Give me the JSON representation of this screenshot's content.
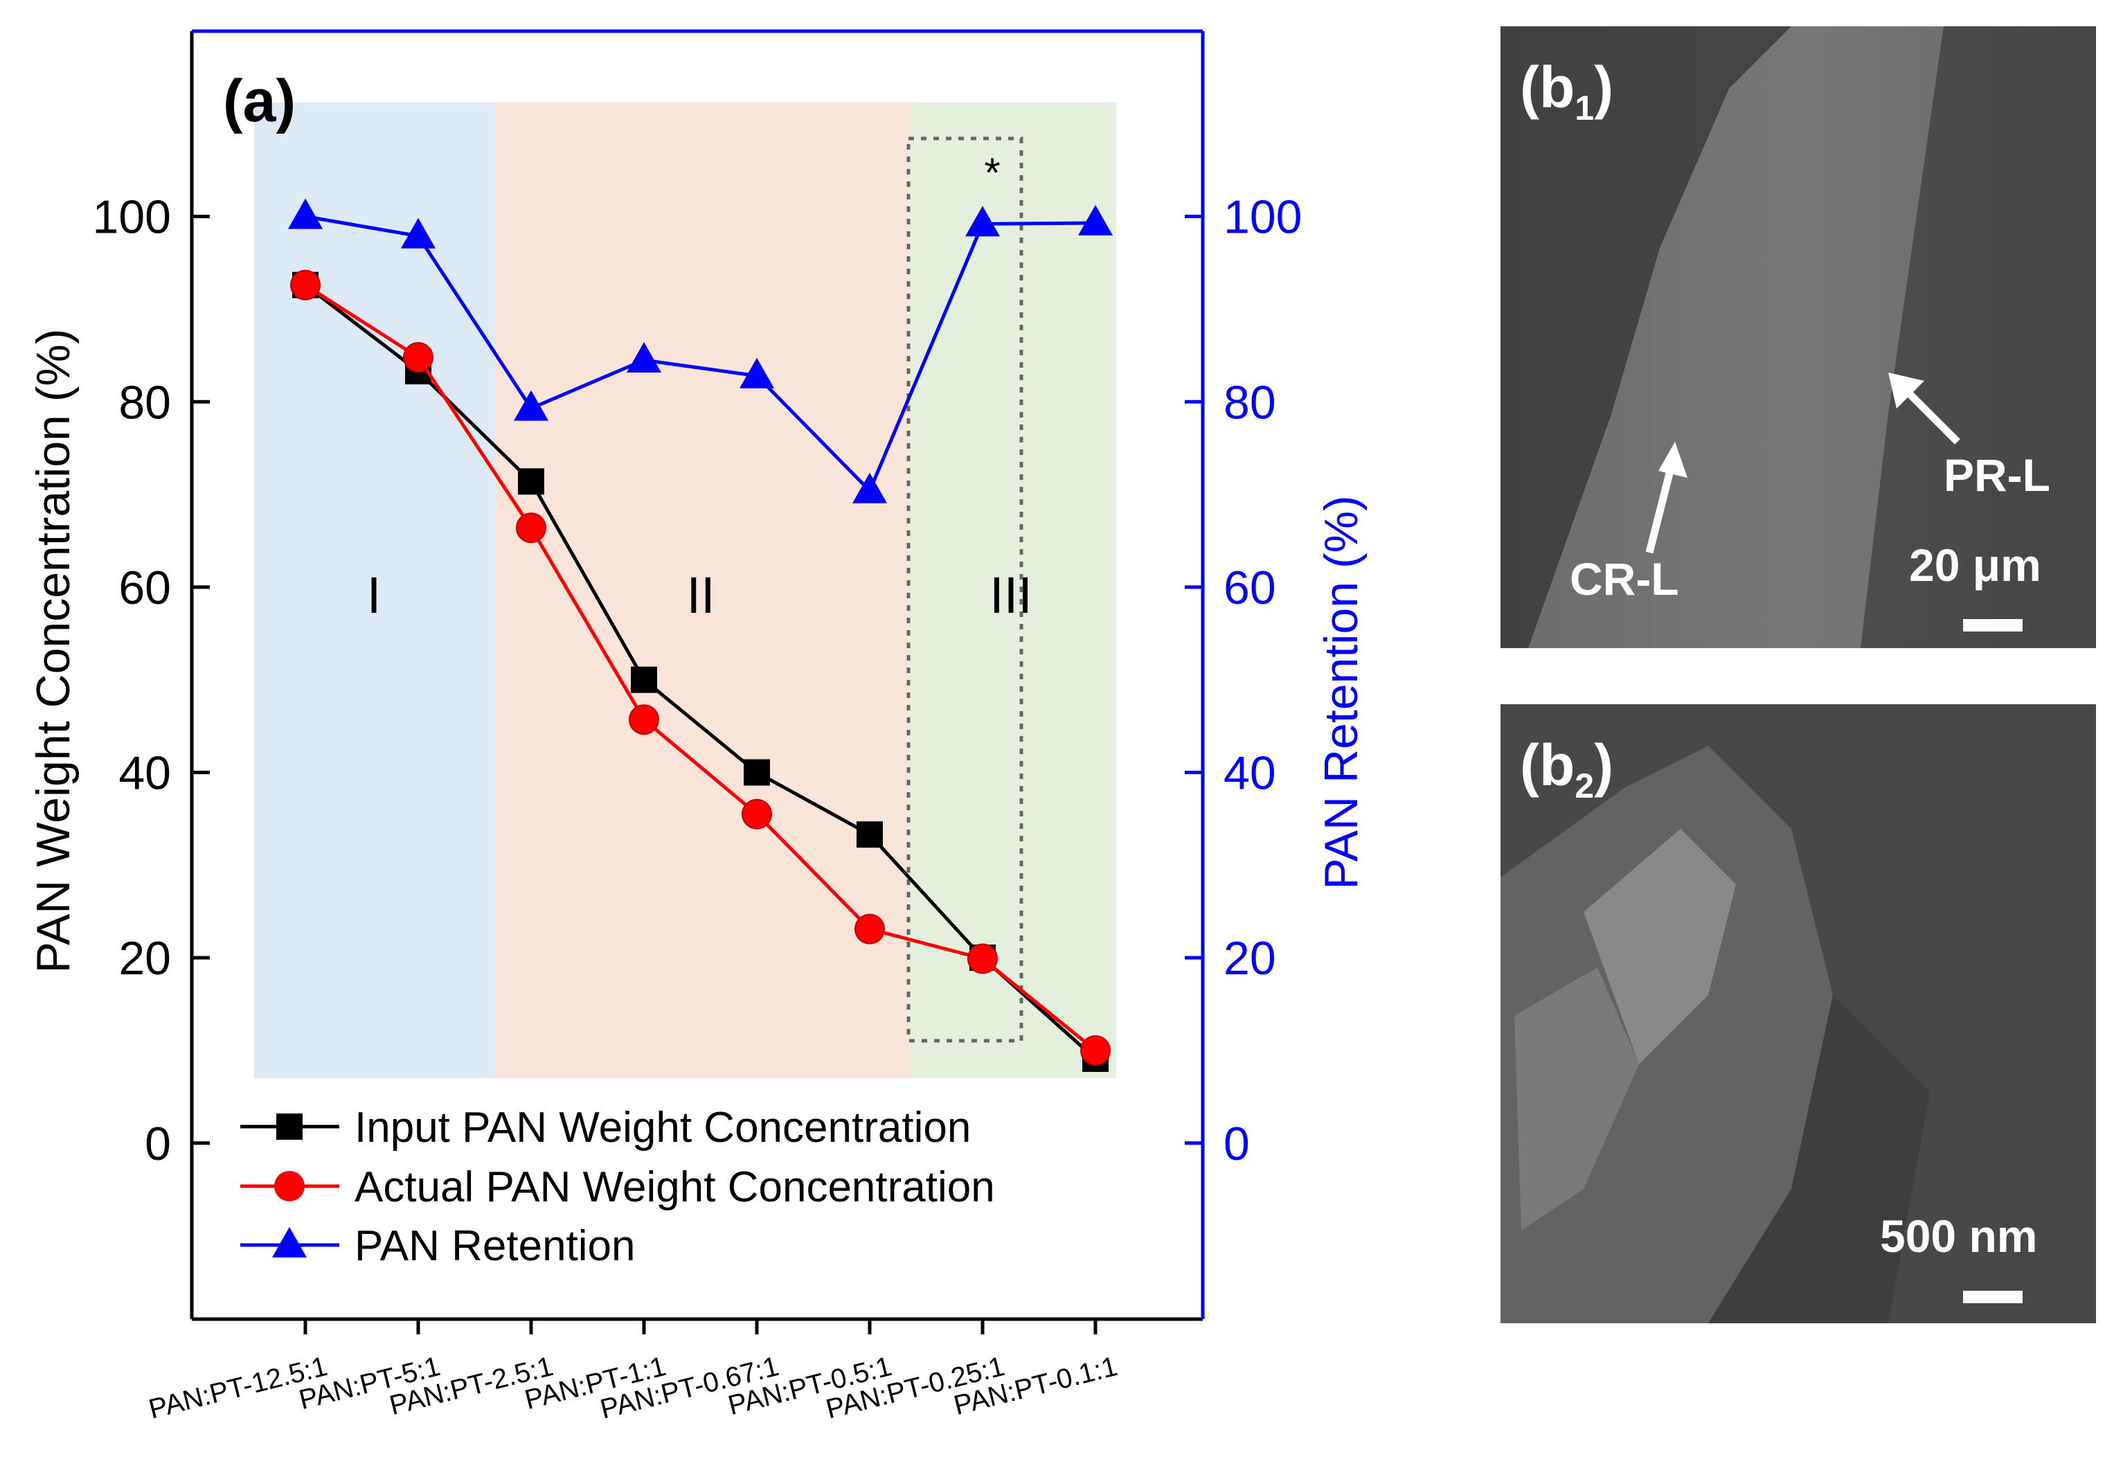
{
  "chart_data": {
    "type": "line",
    "panel_label": "(a)",
    "categories": [
      "PAN:PT-12.5:1",
      "PAN:PT-5:1",
      "PAN:PT-2.5:1",
      "PAN:PT-1:1",
      "PAN:PT-0.67:1",
      "PAN:PT-0.5:1",
      "PAN:PT-0.25:1",
      "PAN:PT-0.1:1"
    ],
    "ylabel": "PAN Weight Concentration (%)",
    "y2label": "PAN Retention (%)",
    "ylim": [
      -19,
      120
    ],
    "y2lim": [
      -19,
      120
    ],
    "yticks": [
      0,
      20,
      40,
      60,
      80,
      100
    ],
    "y2ticks": [
      0,
      20,
      40,
      60,
      80,
      100
    ],
    "grid": false,
    "legend_position": "bottom-left",
    "series": [
      {
        "name": "Input PAN Weight Concentration",
        "axis": "left",
        "color": "#000000",
        "marker": "square",
        "values": [
          92.6,
          83.3,
          71.4,
          50.0,
          40.0,
          33.3,
          20.0,
          9.1
        ]
      },
      {
        "name": "Actual PAN Weight Concentration",
        "axis": "left",
        "color": "#ff0000",
        "marker": "circle",
        "values": [
          92.6,
          84.8,
          66.4,
          45.7,
          35.5,
          23.1,
          19.9,
          10.0
        ]
      },
      {
        "name": "PAN Retention",
        "axis": "right",
        "color": "#0000ff",
        "marker": "triangle",
        "values": [
          100.0,
          97.9,
          79.3,
          84.5,
          82.8,
          70.4,
          99.2,
          99.3
        ]
      }
    ],
    "regions": [
      {
        "label": "I",
        "color": "#dde9f5"
      },
      {
        "label": "II",
        "color": "#f9e4da"
      },
      {
        "label": "III",
        "color": "#e4f0dd"
      }
    ],
    "annotation": "*"
  },
  "sem_panels": [
    {
      "label": "(b",
      "sub": "1",
      "label_close": ")",
      "scale_bar": "20 μm",
      "annotations": [
        "CR-L",
        "PR-L"
      ]
    },
    {
      "label": "(b",
      "sub": "2",
      "label_close": ")",
      "scale_bar": "500 nm",
      "annotations": []
    }
  ],
  "colors": {
    "left_axis": "#000000",
    "right_axis": "#0000ff"
  }
}
